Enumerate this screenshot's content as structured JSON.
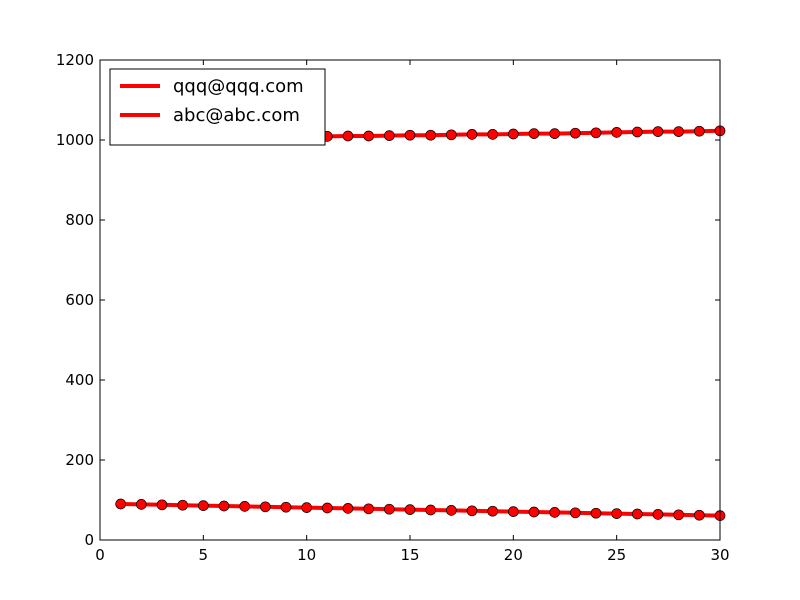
{
  "chart_data": {
    "type": "line",
    "title": "",
    "xlabel": "",
    "ylabel": "",
    "xlim": [
      0,
      30
    ],
    "ylim": [
      0,
      1200
    ],
    "xticks": [
      0,
      5,
      10,
      15,
      20,
      25,
      30
    ],
    "yticks": [
      0,
      200,
      400,
      600,
      800,
      1000,
      1200
    ],
    "grid": false,
    "legend_position": "top-left",
    "x": [
      1,
      2,
      3,
      4,
      5,
      6,
      7,
      8,
      9,
      10,
      11,
      12,
      13,
      14,
      15,
      16,
      17,
      18,
      19,
      20,
      21,
      22,
      23,
      24,
      25,
      26,
      27,
      28,
      29,
      30
    ],
    "series": [
      {
        "name": "qqq@qqq.com",
        "color": "#ff0000",
        "marker": "circle",
        "values": [
          1002,
          1003,
          1003,
          1004,
          1004,
          1005,
          1006,
          1006,
          1007,
          1008,
          1009,
          1010,
          1010,
          1011,
          1012,
          1012,
          1013,
          1014,
          1014,
          1015,
          1016,
          1016,
          1017,
          1018,
          1019,
          1020,
          1021,
          1021,
          1022,
          1023
        ]
      },
      {
        "name": "abc@abc.com",
        "color": "#ff0000",
        "marker": "circle",
        "values": [
          90,
          89,
          88,
          87,
          86,
          85,
          84,
          83,
          82,
          81,
          80,
          79,
          78,
          77,
          76,
          75,
          74,
          73,
          72,
          71,
          70,
          69,
          68,
          67,
          66,
          65,
          64,
          63,
          62,
          61
        ]
      }
    ]
  }
}
